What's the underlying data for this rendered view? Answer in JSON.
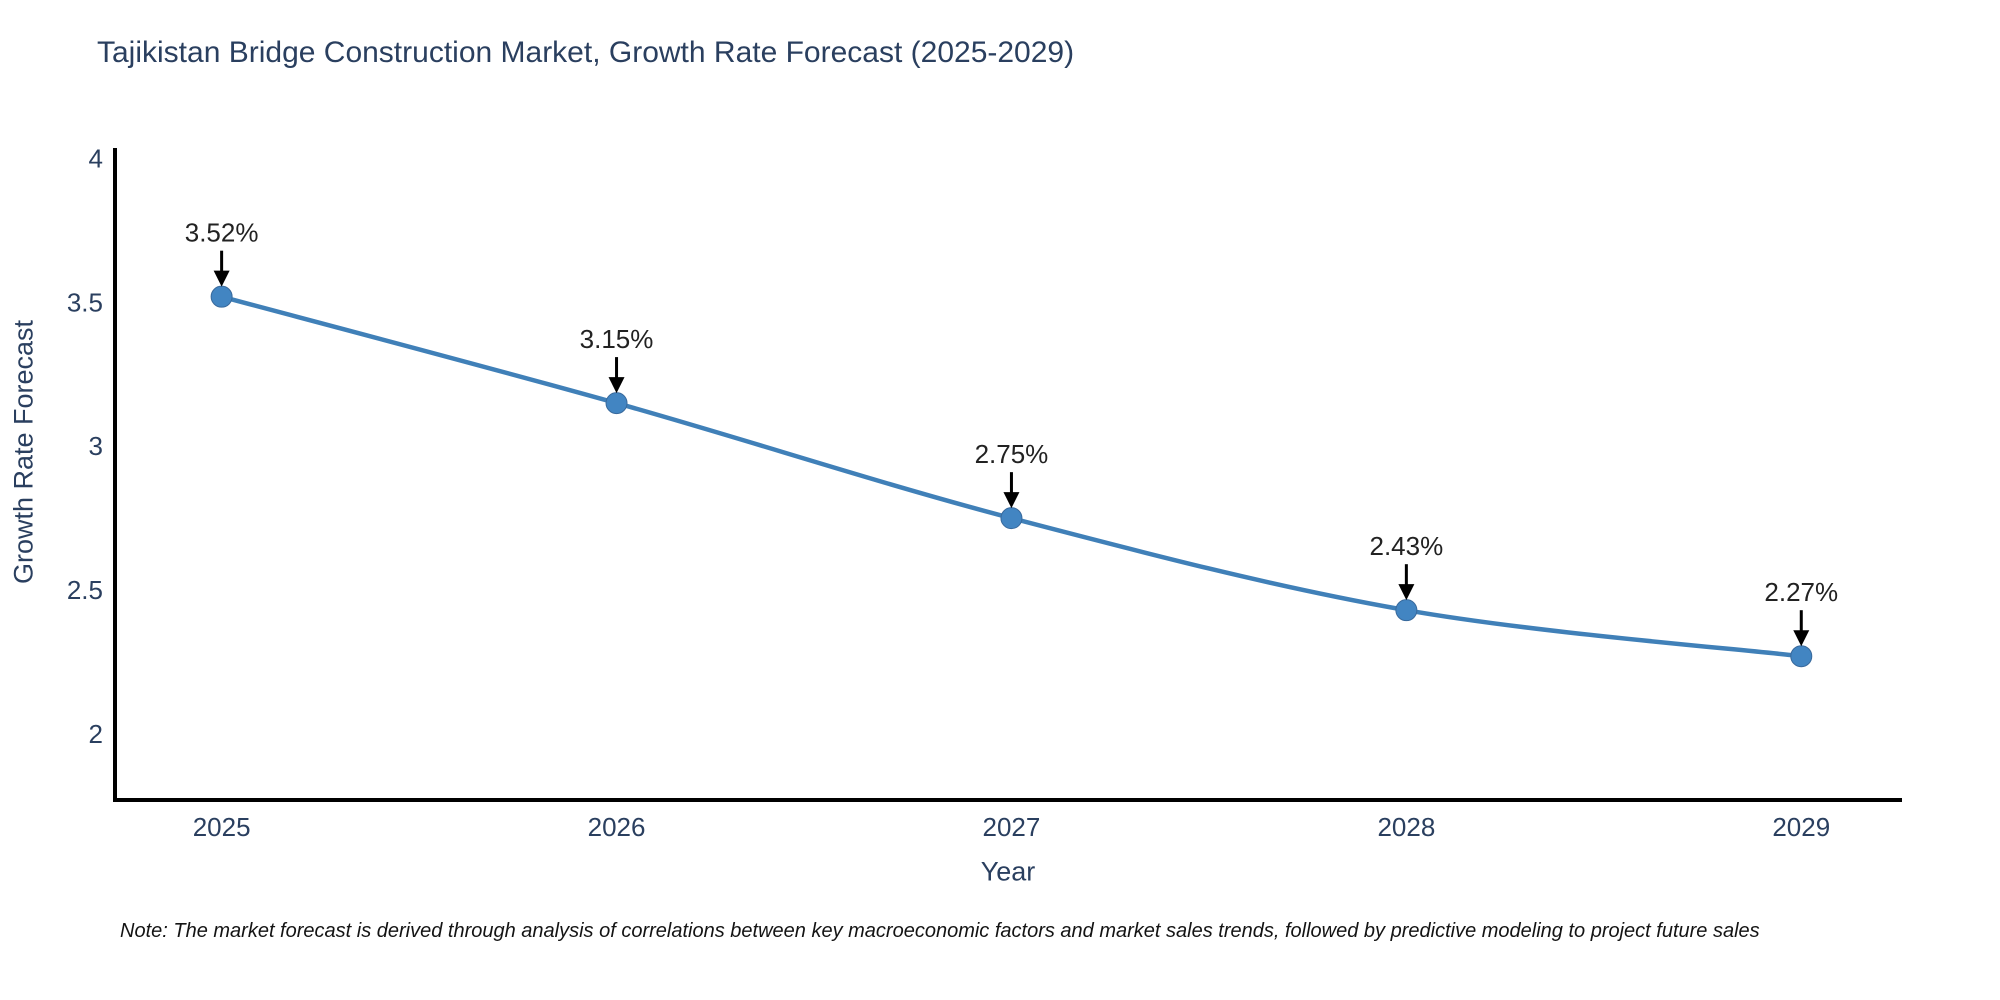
{
  "title": "Tajikistan Bridge Construction Market, Growth Rate Forecast (2025-2029)",
  "footnote": "Note: The market forecast is derived through analysis of correlations between key macroeconomic factors and market sales trends, followed by predictive modeling to project future sales",
  "chart_data": {
    "type": "line",
    "title": "Tajikistan Bridge Construction Market, Growth Rate Forecast (2025-2029)",
    "xlabel": "Year",
    "ylabel": "Growth Rate Forecast",
    "x": [
      2025,
      2026,
      2027,
      2028,
      2029
    ],
    "values": [
      3.52,
      3.15,
      2.75,
      2.43,
      2.27
    ],
    "point_labels": [
      "3.52%",
      "3.15%",
      "2.75%",
      "2.43%",
      "2.27%"
    ],
    "xtick_labels": [
      "2025",
      "2026",
      "2027",
      "2028",
      "2029"
    ],
    "yticks": [
      2,
      2.5,
      3,
      3.5,
      4
    ],
    "ytick_labels": [
      "2",
      "2.5",
      "3",
      "3.5",
      "4"
    ],
    "xlim": [
      2024.73,
      2029.25
    ],
    "ylim": [
      1.77,
      4.03
    ],
    "grid": false,
    "legend": "none",
    "colors": {
      "line": "#4080b8",
      "marker": "#4285c2",
      "marker_edge": "#38699c",
      "axis": "#000000",
      "tick_text": "#2a3f5f",
      "annotation_text": "#222222",
      "arrow": "#000000"
    }
  }
}
